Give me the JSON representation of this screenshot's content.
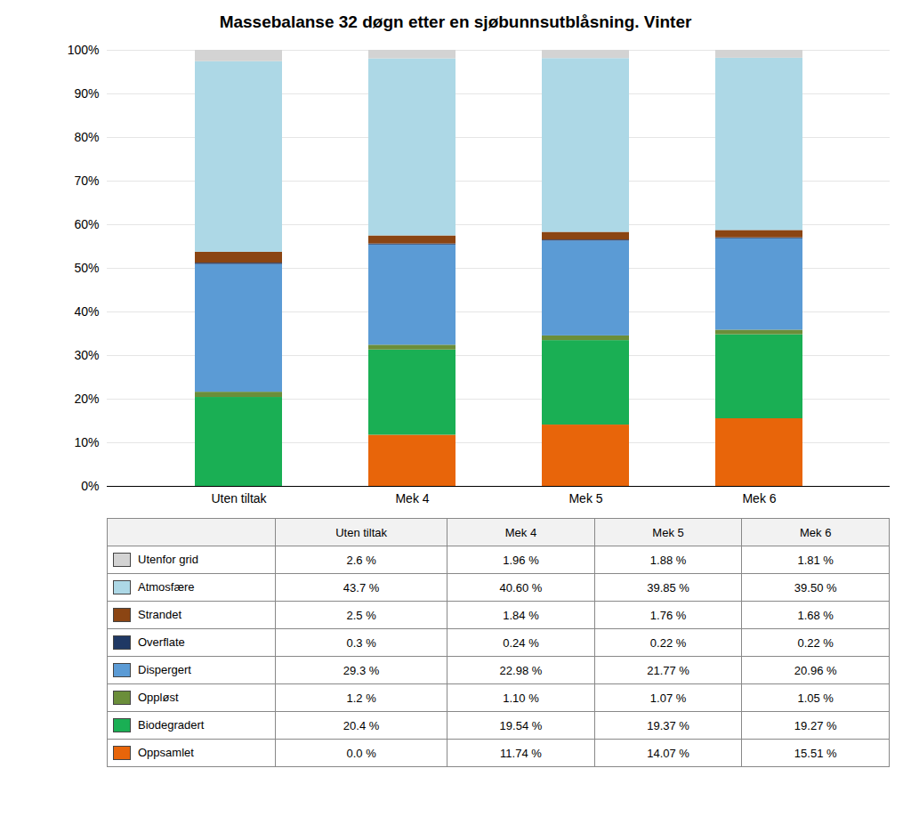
{
  "chart_data": {
    "type": "bar",
    "stacked": true,
    "title": "Massebalanse 32 døgn etter en sjøbunnsutblåsning. Vinter",
    "categories": [
      "Uten tiltak",
      "Mek 4",
      "Mek 5",
      "Mek 6"
    ],
    "series": [
      {
        "name": "Oppsamlet",
        "color": "#E8650A",
        "values": [
          0.0,
          11.74,
          14.07,
          15.51
        ],
        "value_labels": [
          "0.0 %",
          "11.74 %",
          "14.07 %",
          "15.51 %"
        ]
      },
      {
        "name": "Biodegradert",
        "color": "#1AAF54",
        "values": [
          20.4,
          19.54,
          19.37,
          19.27
        ],
        "value_labels": [
          "20.4 %",
          "19.54 %",
          "19.37 %",
          "19.27 %"
        ]
      },
      {
        "name": "Oppløst",
        "color": "#6B8E3A",
        "values": [
          1.2,
          1.1,
          1.07,
          1.05
        ],
        "value_labels": [
          "1.2 %",
          "1.10 %",
          "1.07 %",
          "1.05 %"
        ]
      },
      {
        "name": "Dispergert",
        "color": "#5B9BD5",
        "values": [
          29.3,
          22.98,
          21.77,
          20.96
        ],
        "value_labels": [
          "29.3 %",
          "22.98 %",
          "21.77 %",
          "20.96 %"
        ]
      },
      {
        "name": "Overflate",
        "color": "#1F3864",
        "values": [
          0.3,
          0.24,
          0.22,
          0.22
        ],
        "value_labels": [
          "0.3 %",
          "0.24 %",
          "0.22 %",
          "0.22 %"
        ]
      },
      {
        "name": "Strandet",
        "color": "#8B4513",
        "values": [
          2.5,
          1.84,
          1.76,
          1.68
        ],
        "value_labels": [
          "2.5 %",
          "1.84 %",
          "1.76 %",
          "1.68 %"
        ]
      },
      {
        "name": "Atmosfære",
        "color": "#ADD8E6",
        "values": [
          43.7,
          40.6,
          39.85,
          39.5
        ],
        "value_labels": [
          "43.7 %",
          "40.60 %",
          "39.85 %",
          "39.50 %"
        ]
      },
      {
        "name": "Utenfor grid",
        "color": "#D3D3D3",
        "values": [
          2.6,
          1.96,
          1.88,
          1.81
        ],
        "value_labels": [
          "2.6 %",
          "1.96 %",
          "1.88 %",
          "1.81 %"
        ]
      }
    ],
    "ylim": [
      0,
      100
    ],
    "yticks": [
      {
        "value": 0,
        "label": "0%"
      },
      {
        "value": 10,
        "label": "10%"
      },
      {
        "value": 20,
        "label": "20%"
      },
      {
        "value": 30,
        "label": "30%"
      },
      {
        "value": 40,
        "label": "40%"
      },
      {
        "value": 50,
        "label": "50%"
      },
      {
        "value": 60,
        "label": "60%"
      },
      {
        "value": 70,
        "label": "70%"
      },
      {
        "value": 80,
        "label": "80%"
      },
      {
        "value": 90,
        "label": "90%"
      },
      {
        "value": 100,
        "label": "100%"
      }
    ],
    "grid": true
  }
}
